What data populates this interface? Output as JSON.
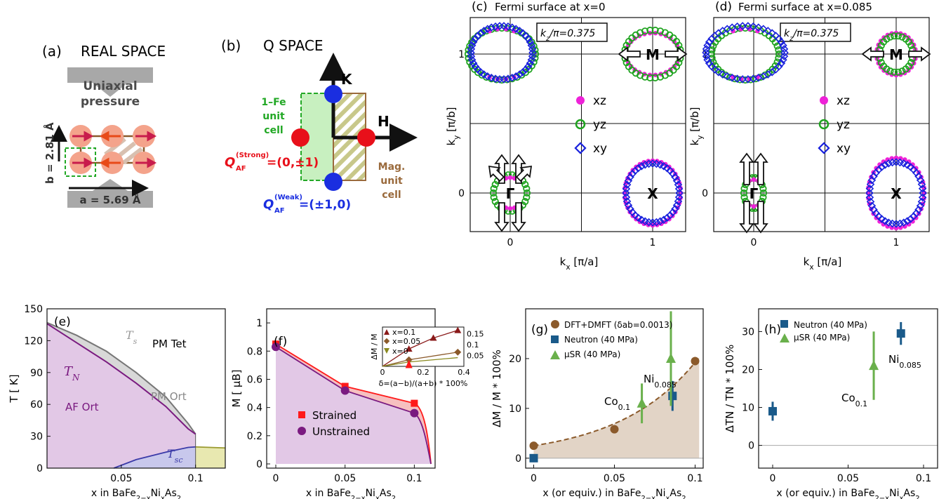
{
  "panel_a": {
    "label": "(a)",
    "title": "REAL SPACE",
    "pressure_line1": "Uniaxial",
    "pressure_line2": "pressure",
    "b_label": "b = 2.81 Å",
    "a_label": "a = 5.69 Å"
  },
  "panel_b": {
    "label": "(b)",
    "title": "Q SPACE",
    "fe_cell": [
      "1–Fe",
      "unit",
      "cell"
    ],
    "mag_cell": [
      "Mag.",
      "unit",
      "cell"
    ],
    "k_label": "K",
    "h_label": "H",
    "q_strong": "=(0,±1)",
    "q_strong_sup": "(Strong)",
    "q_weak": "=(±1,0)",
    "q_weak_sup": "(Weak)",
    "q_sym": "Q",
    "q_sub": "AF",
    "colors": {
      "strong": "#e8101a",
      "weak": "#1a2ee0",
      "fe_cell": "#22a825",
      "mag_cell": "#9a6a3c"
    }
  },
  "panel_c": {
    "label": "(c)",
    "title": "Fermi surface at x=0",
    "kz": "k",
    "kz_rest": "/π=0.375",
    "points": {
      "M": "M",
      "Gamma": "Γ",
      "X": "X"
    },
    "legend": [
      "xz",
      "yz",
      "xy"
    ],
    "xlabel": "k",
    "xlabel_sub": "x",
    "xlabel_rest": " [π/a]",
    "ylabel": "k",
    "ylabel_sub": "y",
    "ylabel_rest": " [π/b]",
    "xticks": [
      "0",
      "1"
    ],
    "yticks": [
      "0",
      "1"
    ]
  },
  "panel_d": {
    "label": "(d)",
    "title": "Fermi surface at x=0.085",
    "kz": "k",
    "kz_rest": "/π=0.375",
    "points": {
      "M": "M",
      "Gamma": "Γ",
      "X": "X"
    },
    "legend": [
      "xz",
      "yz",
      "xy"
    ],
    "xlabel": "k",
    "xlabel_sub": "x",
    "xlabel_rest": " [π/a]",
    "ylabel": "k",
    "ylabel_sub": "y",
    "ylabel_rest": " [π/b]",
    "xticks": [
      "0",
      "1"
    ],
    "yticks": [
      "0",
      "1"
    ]
  },
  "colors": {
    "xz": "#ee22d8",
    "yz": "#1fa31f",
    "xy": "#1a22dd",
    "purple": "#7a1a80",
    "red": "#ff1a1a",
    "navy": "#1a5a8a",
    "green": "#6ab04c",
    "brown": "#8b5a2b"
  },
  "chart_data": [
    {
      "type": "line",
      "panel": "(e)",
      "xlabel": "x in BaFe2−xNixAs2",
      "ylabel": "T [ K]",
      "xlim": [
        0,
        0.12
      ],
      "ylim": [
        0,
        150
      ],
      "xticks": [
        "0.05",
        "0.1"
      ],
      "yticks": [
        "0",
        "30",
        "60",
        "90",
        "120",
        "150"
      ],
      "annotations": [
        "PM Tet",
        "PM Ort",
        "AF Ort",
        "T",
        "s",
        "N",
        "sc"
      ],
      "series": [
        {
          "name": "Ts",
          "x": [
            0,
            0.02,
            0.04,
            0.06,
            0.08,
            0.095,
            0.1
          ],
          "y": [
            137,
            125,
            110,
            90,
            67,
            42,
            32
          ]
        },
        {
          "name": "TN",
          "x": [
            0,
            0.02,
            0.04,
            0.06,
            0.08,
            0.095,
            0.1
          ],
          "y": [
            136,
            118,
            100,
            80,
            58,
            37,
            32
          ]
        },
        {
          "name": "Tsc",
          "x": [
            0.045,
            0.06,
            0.08,
            0.095,
            0.1,
            0.12
          ],
          "y": [
            0,
            8,
            15,
            19.5,
            20,
            19
          ]
        }
      ]
    },
    {
      "type": "line",
      "panel": "(f)",
      "xlabel": "x in BaFe2−xNixAs2",
      "ylabel": "M [ μB]",
      "xlim": [
        0,
        0.115
      ],
      "ylim": [
        0,
        1.0
      ],
      "xticks": [
        "0",
        "0.05",
        "0.1"
      ],
      "yticks": [
        "0",
        "0.2",
        "0.4",
        "0.6",
        "0.8",
        "1"
      ],
      "series": [
        {
          "name": "Strained",
          "x": [
            0,
            0.05,
            0.1
          ],
          "y": [
            0.85,
            0.55,
            0.43
          ]
        },
        {
          "name": "Unstrained",
          "x": [
            0,
            0.05,
            0.1
          ],
          "y": [
            0.83,
            0.52,
            0.36
          ]
        }
      ],
      "inset": {
        "ylabel": "ΔM / M",
        "xlabel": "δ=(a−b)/(a+b) * 100%",
        "xticks": [
          "0",
          "0.2",
          "0.4"
        ],
        "yticks": [
          "0.05",
          "0.1",
          "0.15"
        ],
        "series": [
          {
            "name": "x=0.1",
            "x": [
              0,
              0.13,
              0.25,
              0.37
            ],
            "y": [
              0,
              0.08,
              0.13,
              0.165
            ]
          },
          {
            "name": "x=0.05",
            "x": [
              0,
              0.13,
              0.37
            ],
            "y": [
              0,
              0.03,
              0.065
            ]
          },
          {
            "name": "x=0",
            "x": [
              0,
              0.13,
              0.37
            ],
            "y": [
              0,
              0.02,
              0.04
            ]
          }
        ]
      }
    },
    {
      "type": "scatter",
      "panel": "(g)",
      "xlabel": "x (or equiv.) in BaFe2−xNixAs2",
      "ylabel": "ΔM / M * 100%",
      "xlim": [
        -0.005,
        0.105
      ],
      "ylim": [
        -2,
        30
      ],
      "xticks": [
        "0",
        "0.05",
        "0.1"
      ],
      "yticks": [
        "0",
        "10",
        "20"
      ],
      "legend": [
        "DFT+DMFT (δab=0.0013)",
        "Neutron (40 MPa)",
        "μSR (40 MPa)"
      ],
      "series": [
        {
          "name": "DFT+DMFT",
          "x": [
            0,
            0.05,
            0.1
          ],
          "y": [
            2.5,
            5.8,
            19.5
          ]
        },
        {
          "name": "Neutron",
          "x": [
            0,
            0.086
          ],
          "y": [
            0,
            12.5
          ],
          "err": [
            0,
            3
          ]
        },
        {
          "name": "μSR",
          "x": [
            0.067,
            0.085
          ],
          "y": [
            11,
            20
          ],
          "err": [
            4,
            9.5
          ]
        }
      ],
      "annotations": [
        "Co0.1",
        "Ni0.085"
      ]
    },
    {
      "type": "scatter",
      "panel": "(h)",
      "xlabel": "x (or equiv.) in BaFe2−xNixAs2",
      "ylabel": "ΔTN / TN * 100%",
      "xlim": [
        -0.005,
        0.105
      ],
      "ylim": [
        -6,
        36
      ],
      "xticks": [
        "0",
        "0.05",
        "0.1"
      ],
      "yticks": [
        "0",
        "10",
        "20",
        "30"
      ],
      "legend": [
        "Neutron (40 MPa)",
        "μSR (40 MPa)"
      ],
      "series": [
        {
          "name": "Neutron",
          "x": [
            0,
            0.085
          ],
          "y": [
            9,
            29.5
          ],
          "err": [
            2.5,
            3
          ]
        },
        {
          "name": "μSR",
          "x": [
            0.067
          ],
          "y": [
            21
          ],
          "err": [
            9
          ]
        }
      ],
      "annotations": [
        "Co0.1",
        "Ni0.085"
      ]
    }
  ]
}
